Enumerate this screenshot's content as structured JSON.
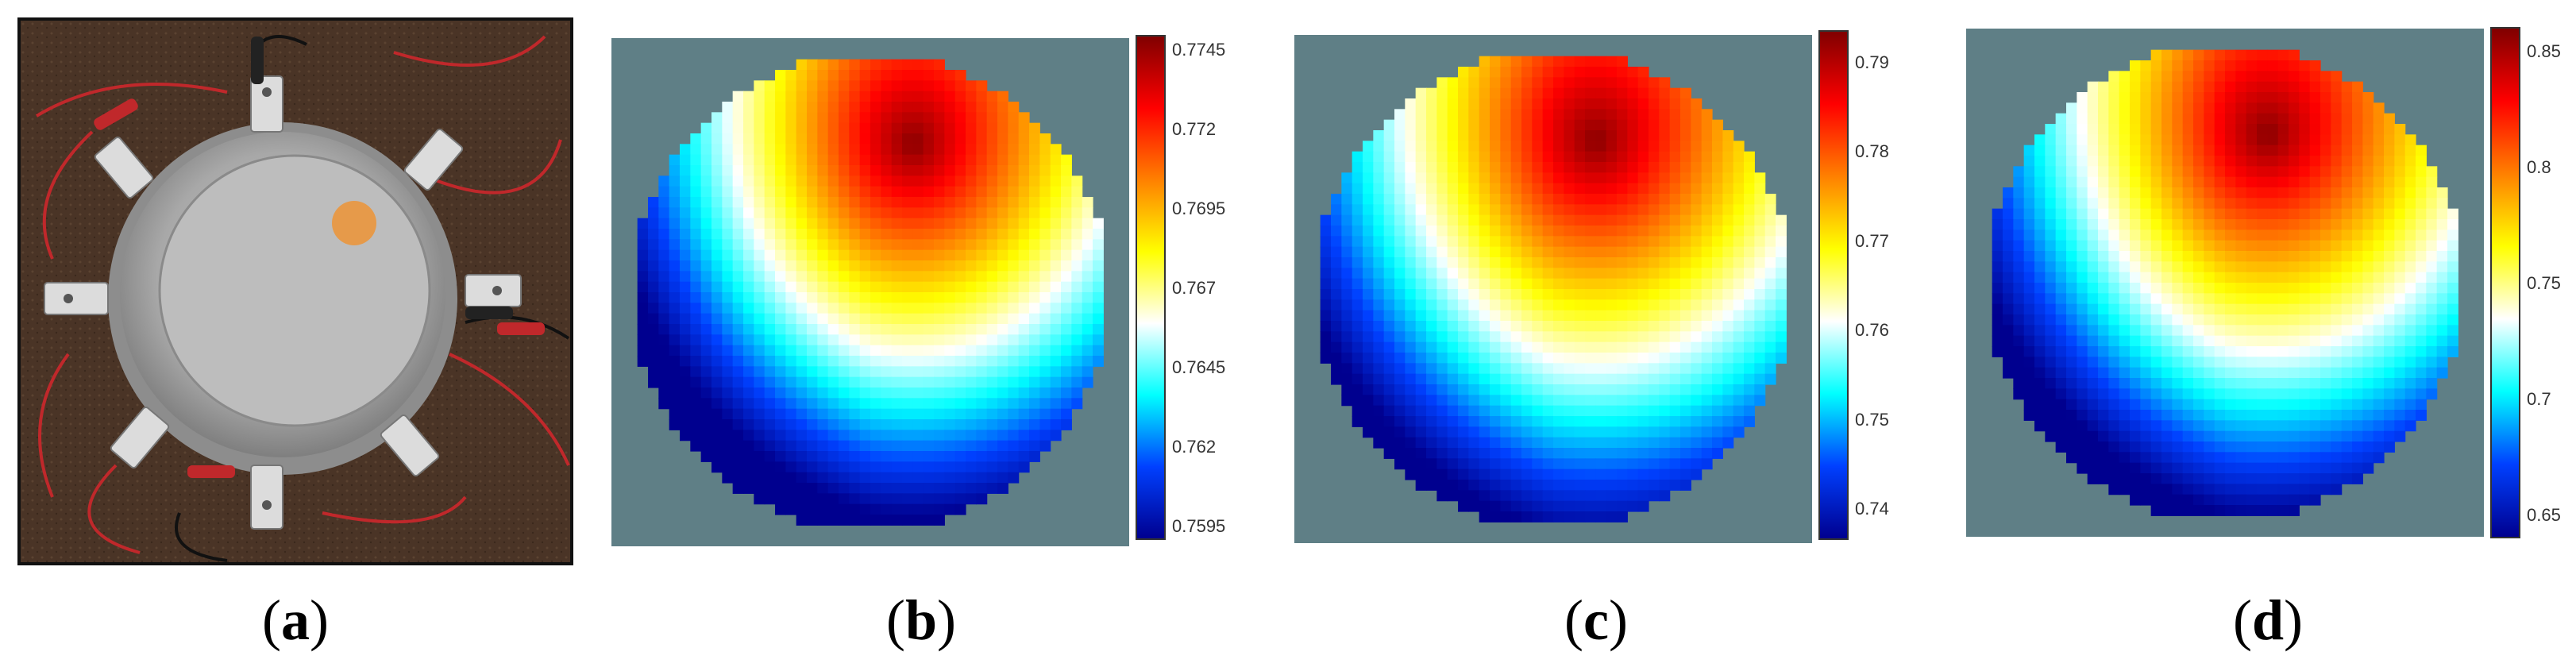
{
  "captions": {
    "a": "a",
    "b": "b",
    "c": "c",
    "d": "d"
  },
  "colorbars": {
    "b": {
      "ticks": [
        "0.7745",
        "0.772",
        "0.7695",
        "0.767",
        "0.7645",
        "0.762",
        "0.7595"
      ]
    },
    "c": {
      "ticks": [
        "0.79",
        "0.78",
        "0.77",
        "0.76",
        "0.75",
        "0.74"
      ]
    },
    "d": {
      "ticks": [
        "0.85",
        "0.8",
        "0.75",
        "0.7",
        "0.65"
      ]
    }
  },
  "colors": {
    "background_plot": "#5f7f86",
    "photo_background": "#4a3426",
    "colormap": [
      "#00008f",
      "#0040ff",
      "#00ffff",
      "#ffffff",
      "#ffff00",
      "#ff8000",
      "#ff0000",
      "#800000"
    ]
  }
}
